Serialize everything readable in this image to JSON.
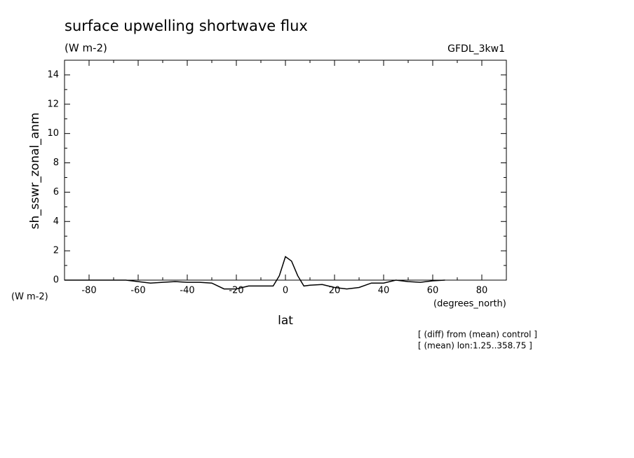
{
  "chart_data": {
    "type": "line",
    "title": "surface upwelling shortwave flux",
    "units_label": "(W m-2)",
    "dataset": "GFDL_3kw1",
    "ylabel": "sh_sswr_zonal_anm",
    "y_units": "(W m-2)",
    "x_units": "(degrees_north)",
    "xlabel": "lat",
    "notes": [
      "[ (diff) from (mean) control ]",
      "[ (mean) lon:1.25..358.75 ]"
    ],
    "xlim": [
      -90,
      90
    ],
    "ylim": [
      0,
      15
    ],
    "xticks": [
      -80,
      -60,
      -40,
      -20,
      0,
      20,
      40,
      60,
      80
    ],
    "xminorticks": [
      -90,
      -70,
      -50,
      -30,
      -10,
      10,
      30,
      50,
      70,
      90
    ],
    "yticks": [
      0,
      2,
      4,
      6,
      8,
      10,
      12,
      14
    ],
    "yminorticks": [
      1,
      3,
      5,
      7,
      9,
      11,
      13,
      15
    ],
    "color": "#000000",
    "x": [
      -90,
      -85,
      -80,
      -75,
      -70,
      -65,
      -60,
      -55,
      -50,
      -45,
      -40,
      -35,
      -30,
      -25,
      -20,
      -15,
      -10,
      -5,
      -2.5,
      0,
      2.5,
      5,
      7.5,
      10,
      15,
      20,
      25,
      30,
      35,
      40,
      45,
      50,
      55,
      60,
      65
    ],
    "series": [
      {
        "values": [
          0,
          0,
          0,
          0,
          0,
          0,
          -0.1,
          -0.2,
          -0.15,
          -0.1,
          -0.15,
          -0.15,
          -0.2,
          -0.6,
          -0.6,
          -0.4,
          -0.4,
          -0.4,
          0.3,
          1.6,
          1.3,
          0.3,
          -0.4,
          -0.35,
          -0.3,
          -0.5,
          -0.6,
          -0.5,
          -0.2,
          -0.2,
          0,
          -0.1,
          -0.15,
          -0.05,
          0
        ]
      }
    ]
  }
}
